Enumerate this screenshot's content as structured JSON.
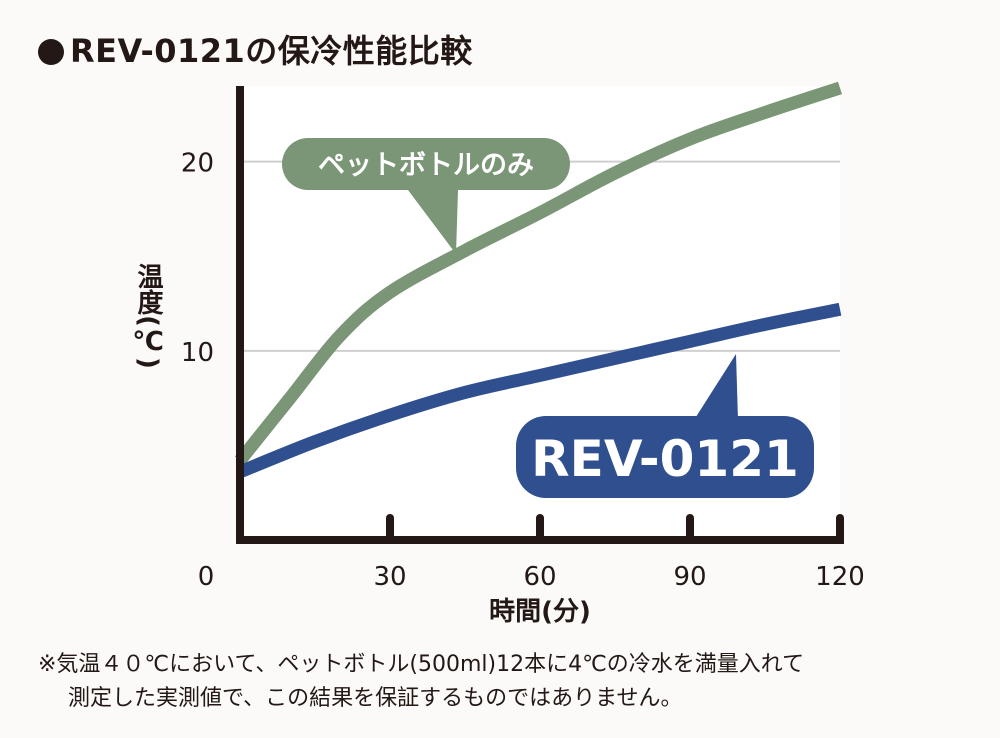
{
  "title": "REV-0121の保冷性能比較",
  "chart_data": {
    "type": "line",
    "xlabel": "時間(分)",
    "ylabel": "温度(℃)",
    "x_ticks": [
      0,
      30,
      60,
      90,
      120
    ],
    "y_ticks": [
      10,
      20
    ],
    "xlim": [
      0,
      120
    ],
    "ylim": [
      0,
      24
    ],
    "grid": true,
    "series": [
      {
        "name": "ペットボトルのみ",
        "color": "#7a9676",
        "x": [
          0,
          10,
          20,
          30,
          45,
          60,
          75,
          90,
          105,
          120
        ],
        "y": [
          4.2,
          7.5,
          10.8,
          13.1,
          15.3,
          17.3,
          19.4,
          21.2,
          22.6,
          23.9
        ]
      },
      {
        "name": "REV-0121",
        "color": "#304f8f",
        "x": [
          0,
          15,
          30,
          45,
          60,
          75,
          90,
          105,
          120
        ],
        "y": [
          3.6,
          5.2,
          6.6,
          7.8,
          8.7,
          9.6,
          10.5,
          11.4,
          12.2
        ]
      }
    ]
  },
  "note": {
    "line1": "※気温４０℃において、ペットボトル(500ml)12本に4℃の冷水を満量入れて",
    "line2": "測定した実測値で、この結果を保証するものではありません。"
  }
}
